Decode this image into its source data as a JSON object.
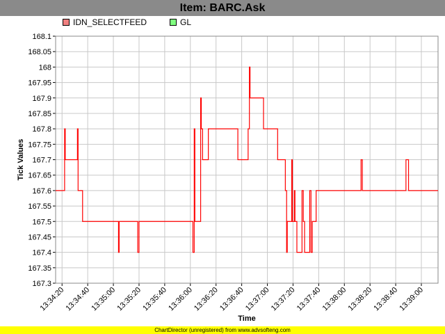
{
  "title": "Item: BARC.Ask",
  "footer": "ChartDirector (unregistered) from www.advsofteng.com",
  "legend": [
    {
      "label": "IDN_SELECTFEED",
      "color": "#f08080"
    },
    {
      "label": "GL",
      "color": "#80ff80"
    }
  ],
  "colors": {
    "series": "#ff0000",
    "grid": "#c8c8c8",
    "plot_bg": "#ffffff"
  },
  "chart_data": {
    "type": "line",
    "title": "Item: BARC.Ask",
    "xlabel": "Time",
    "ylabel": "Tick Values",
    "ylim": [
      167.3,
      168.1
    ],
    "yticks": [
      "168.1",
      "168.05",
      "168",
      "167.95",
      "167.9",
      "167.85",
      "167.8",
      "167.75",
      "167.7",
      "167.65",
      "167.6",
      "167.55",
      "167.5",
      "167.45",
      "167.4",
      "167.35",
      "167.3"
    ],
    "xlim": [
      "13:34:15",
      "13:39:13"
    ],
    "xticks": [
      "13:34:20",
      "13:34:40",
      "13:35:00",
      "13:35:20",
      "13:35:40",
      "13:36:00",
      "13:36:20",
      "13:36:40",
      "13:37:00",
      "13:37:20",
      "13:37:40",
      "13:38:00",
      "13:38:20",
      "13:38:40",
      "13:39:00"
    ],
    "grid": true,
    "legend_position": "top-left",
    "series": [
      {
        "name": "IDN_SELECTFEED",
        "step": true,
        "points": [
          [
            "13:34:15",
            167.6
          ],
          [
            "13:34:22",
            167.6
          ],
          [
            "13:34:22",
            167.8
          ],
          [
            "13:34:22.5",
            167.8
          ],
          [
            "13:34:22.5",
            167.7
          ],
          [
            "13:34:32",
            167.7
          ],
          [
            "13:34:32",
            167.8
          ],
          [
            "13:34:32.5",
            167.8
          ],
          [
            "13:34:32.5",
            167.6
          ],
          [
            "13:34:36",
            167.6
          ],
          [
            "13:34:36",
            167.5
          ],
          [
            "13:35:04",
            167.5
          ],
          [
            "13:35:04",
            167.4
          ],
          [
            "13:35:04.5",
            167.4
          ],
          [
            "13:35:04.5",
            167.5
          ],
          [
            "13:35:19",
            167.5
          ],
          [
            "13:35:19",
            167.4
          ],
          [
            "13:35:20",
            167.4
          ],
          [
            "13:35:20",
            167.5
          ],
          [
            "13:36:02",
            167.5
          ],
          [
            "13:36:02",
            167.4
          ],
          [
            "13:36:03",
            167.4
          ],
          [
            "13:36:03",
            167.8
          ],
          [
            "13:36:03.5",
            167.8
          ],
          [
            "13:36:03.5",
            167.5
          ],
          [
            "13:36:08",
            167.5
          ],
          [
            "13:36:08",
            167.9
          ],
          [
            "13:36:08.5",
            167.9
          ],
          [
            "13:36:08.5",
            167.8
          ],
          [
            "13:36:09.5",
            167.8
          ],
          [
            "13:36:09.5",
            167.7
          ],
          [
            "13:36:14",
            167.7
          ],
          [
            "13:36:14",
            167.8
          ],
          [
            "13:36:37",
            167.8
          ],
          [
            "13:36:37",
            167.7
          ],
          [
            "13:36:45",
            167.7
          ],
          [
            "13:36:45",
            167.8
          ],
          [
            "13:36:46",
            167.8
          ],
          [
            "13:36:46",
            168.0
          ],
          [
            "13:36:46.5",
            168.0
          ],
          [
            "13:36:46.5",
            167.9
          ],
          [
            "13:36:57",
            167.9
          ],
          [
            "13:36:57",
            167.8
          ],
          [
            "13:37:08",
            167.8
          ],
          [
            "13:37:08",
            167.7
          ],
          [
            "13:37:14",
            167.7
          ],
          [
            "13:37:14",
            167.6
          ],
          [
            "13:37:15",
            167.6
          ],
          [
            "13:37:15",
            167.4
          ],
          [
            "13:37:15.5",
            167.4
          ],
          [
            "13:37:15.5",
            167.5
          ],
          [
            "13:37:19",
            167.5
          ],
          [
            "13:37:19",
            167.7
          ],
          [
            "13:37:19.5",
            167.7
          ],
          [
            "13:37:19.5",
            167.5
          ],
          [
            "13:37:21",
            167.5
          ],
          [
            "13:37:21",
            167.6
          ],
          [
            "13:37:21.5",
            167.6
          ],
          [
            "13:37:21.5",
            167.5
          ],
          [
            "13:37:23",
            167.5
          ],
          [
            "13:37:23",
            167.4
          ],
          [
            "13:37:27",
            167.4
          ],
          [
            "13:37:27",
            167.6
          ],
          [
            "13:37:28",
            167.6
          ],
          [
            "13:37:28",
            167.5
          ],
          [
            "13:37:29",
            167.5
          ],
          [
            "13:37:29",
            167.4
          ],
          [
            "13:37:33",
            167.4
          ],
          [
            "13:37:33",
            167.6
          ],
          [
            "13:37:34",
            167.6
          ],
          [
            "13:37:34",
            167.4
          ],
          [
            "13:37:35",
            167.4
          ],
          [
            "13:37:35",
            167.5
          ],
          [
            "13:37:38",
            167.5
          ],
          [
            "13:37:38",
            167.6
          ],
          [
            "13:38:13",
            167.6
          ],
          [
            "13:38:13",
            167.7
          ],
          [
            "13:38:14",
            167.7
          ],
          [
            "13:38:14",
            167.6
          ],
          [
            "13:38:48",
            167.6
          ],
          [
            "13:38:48",
            167.7
          ],
          [
            "13:38:50",
            167.7
          ],
          [
            "13:38:50",
            167.6
          ],
          [
            "13:39:13",
            167.6
          ]
        ]
      }
    ]
  }
}
